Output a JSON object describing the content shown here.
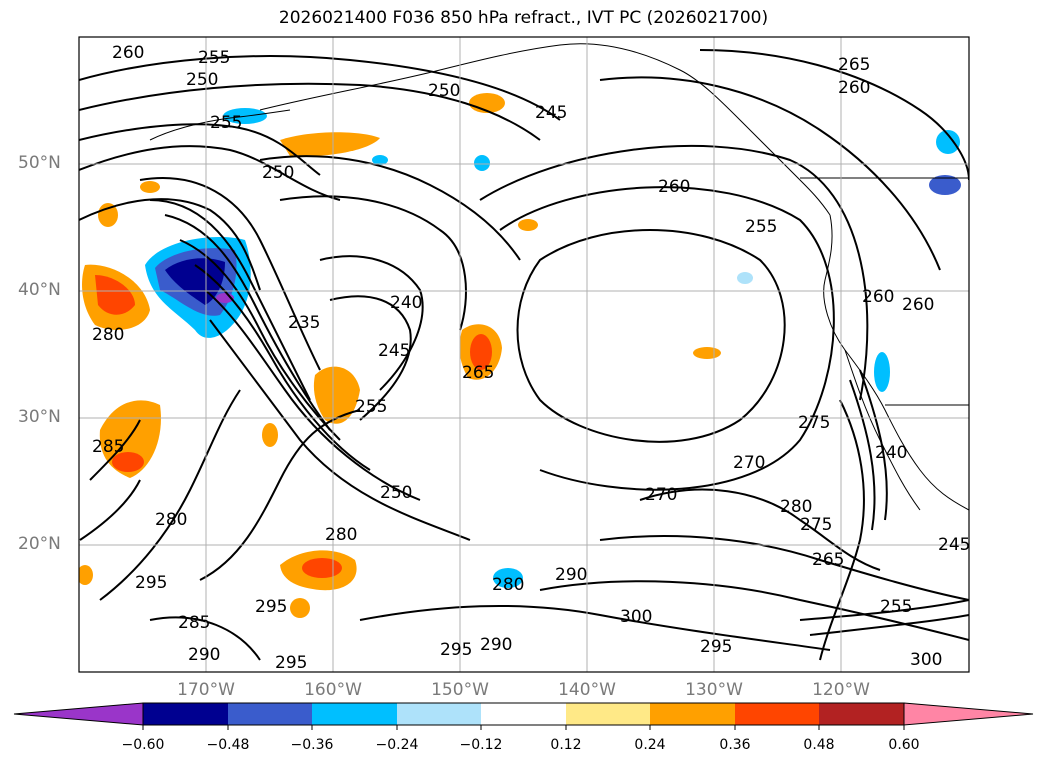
{
  "title": "2026021400 F036 850 hPa refract., IVT PC (2026021700)",
  "map": {
    "extent": {
      "lon_min": -180,
      "lon_max": -110,
      "lat_min": 10,
      "lat_max": 60
    },
    "lat_labels": [
      "50°N",
      "40°N",
      "30°N",
      "20°N"
    ],
    "lon_labels": [
      "170°W",
      "160°W",
      "150°W",
      "140°W",
      "130°W",
      "120°W"
    ],
    "contour_labels": [
      "260",
      "255",
      "250",
      "255",
      "250",
      "245",
      "265",
      "260",
      "250",
      "260",
      "255",
      "240",
      "235",
      "245",
      "255",
      "265",
      "260",
      "260",
      "270",
      "275",
      "280",
      "250",
      "280",
      "270",
      "285",
      "295",
      "295",
      "280",
      "290",
      "280",
      "295",
      "285",
      "290",
      "295",
      "290",
      "300",
      "295",
      "275",
      "265",
      "240",
      "245",
      "255",
      "300",
      "280"
    ],
    "colors": {
      "contour": "#000000",
      "grid": "#b0b0b0",
      "coast": "#000000"
    }
  },
  "colorbar": {
    "ticks": [
      "−0.60",
      "−0.48",
      "−0.36",
      "−0.24",
      "−0.12",
      "0.12",
      "0.24",
      "0.36",
      "0.48",
      "0.60"
    ],
    "colors": [
      "#9a35c9",
      "#000090",
      "#3a5ccc",
      "#00bfff",
      "#aee2fa",
      "#ffffff",
      "#ffe987",
      "#ffa000",
      "#ff4500",
      "#b22222",
      "#ff85a5"
    ]
  }
}
